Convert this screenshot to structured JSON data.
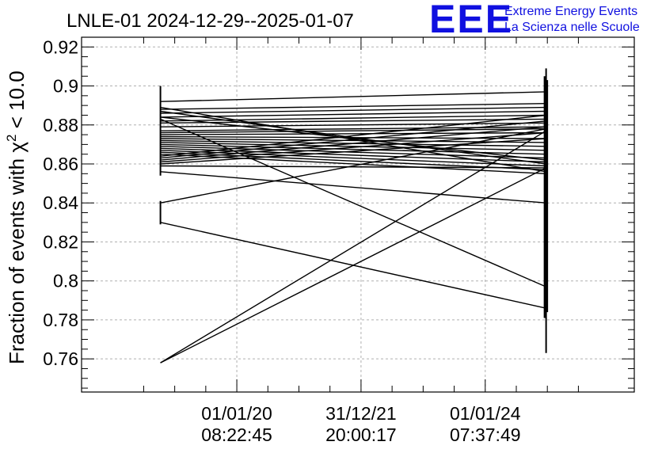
{
  "chart_data": {
    "type": "line",
    "title": "LNLE-01 2024-12-29--2025-01-07",
    "ylabel_prefix": "Fraction of events with χ",
    "ylabel_sup": "2",
    "ylabel_suffix": " < 10.0",
    "ylim": [
      0.743,
      0.925
    ],
    "y_ticks": [
      {
        "value": 0.76,
        "label": "0.76"
      },
      {
        "value": 0.78,
        "label": "0.78"
      },
      {
        "value": 0.8,
        "label": "0.8"
      },
      {
        "value": 0.82,
        "label": "0.82"
      },
      {
        "value": 0.84,
        "label": "0.84"
      },
      {
        "value": 0.86,
        "label": "0.86"
      },
      {
        "value": 0.88,
        "label": "0.88"
      },
      {
        "value": 0.9,
        "label": "0.9"
      },
      {
        "value": 0.92,
        "label": "0.92"
      }
    ],
    "xlim": [
      2017.5,
      2026.4
    ],
    "x_ticks": [
      {
        "value": 2020.0,
        "line1": "01/01/20",
        "line2": "08:22:45"
      },
      {
        "value": 2022.0,
        "line1": "31/12/21",
        "line2": "20:00:17"
      },
      {
        "value": 2024.0,
        "line1": "01/01/24",
        "line2": "07:37:49"
      }
    ],
    "grid": true,
    "series_x": [
      2018.77,
      2024.98
    ],
    "series": [
      {
        "values": [
          0.892,
          0.897
        ]
      },
      {
        "values": [
          0.888,
          0.891
        ]
      },
      {
        "values": [
          0.886,
          0.889
        ]
      },
      {
        "values": [
          0.884,
          0.887
        ]
      },
      {
        "values": [
          0.882,
          0.885
        ]
      },
      {
        "values": [
          0.881,
          0.883
        ]
      },
      {
        "values": [
          0.879,
          0.881
        ]
      },
      {
        "values": [
          0.877,
          0.879
        ]
      },
      {
        "values": [
          0.876,
          0.878
        ]
      },
      {
        "values": [
          0.875,
          0.876
        ]
      },
      {
        "values": [
          0.874,
          0.873
        ]
      },
      {
        "values": [
          0.873,
          0.871
        ]
      },
      {
        "values": [
          0.872,
          0.869
        ]
      },
      {
        "values": [
          0.871,
          0.867
        ]
      },
      {
        "values": [
          0.87,
          0.865
        ]
      },
      {
        "values": [
          0.869,
          0.863
        ]
      },
      {
        "values": [
          0.868,
          0.861
        ]
      },
      {
        "values": [
          0.867,
          0.859
        ]
      },
      {
        "values": [
          0.866,
          0.857
        ]
      },
      {
        "values": [
          0.865,
          0.855
        ]
      },
      {
        "values": [
          0.864,
          0.885
        ]
      },
      {
        "values": [
          0.863,
          0.882
        ]
      },
      {
        "values": [
          0.862,
          0.879
        ]
      },
      {
        "values": [
          0.861,
          0.876
        ]
      },
      {
        "values": [
          0.86,
          0.873
        ]
      },
      {
        "values": [
          0.859,
          0.858
        ]
      },
      {
        "values": [
          0.856,
          0.84
        ]
      },
      {
        "values": [
          0.884,
          0.862
        ]
      },
      {
        "values": [
          0.887,
          0.86
        ]
      },
      {
        "values": [
          0.889,
          0.856
        ]
      },
      {
        "values": [
          0.883,
          0.797
        ]
      },
      {
        "values": [
          0.84,
          0.878
        ]
      },
      {
        "values": [
          0.83,
          0.786
        ]
      },
      {
        "values": [
          0.758,
          0.877
        ]
      },
      {
        "values": [
          0.758,
          0.858
        ]
      }
    ],
    "error_bars": [
      {
        "x": 2018.77,
        "low": 0.854,
        "high": 0.9
      },
      {
        "x": 2018.77,
        "low": 0.829,
        "high": 0.841
      },
      {
        "x": 2024.98,
        "low": 0.763,
        "high": 0.909
      }
    ]
  },
  "logo": {
    "mark": "EEE",
    "line1": "Extreme Energy Events",
    "line2": "La Scienza nelle Scuole"
  }
}
